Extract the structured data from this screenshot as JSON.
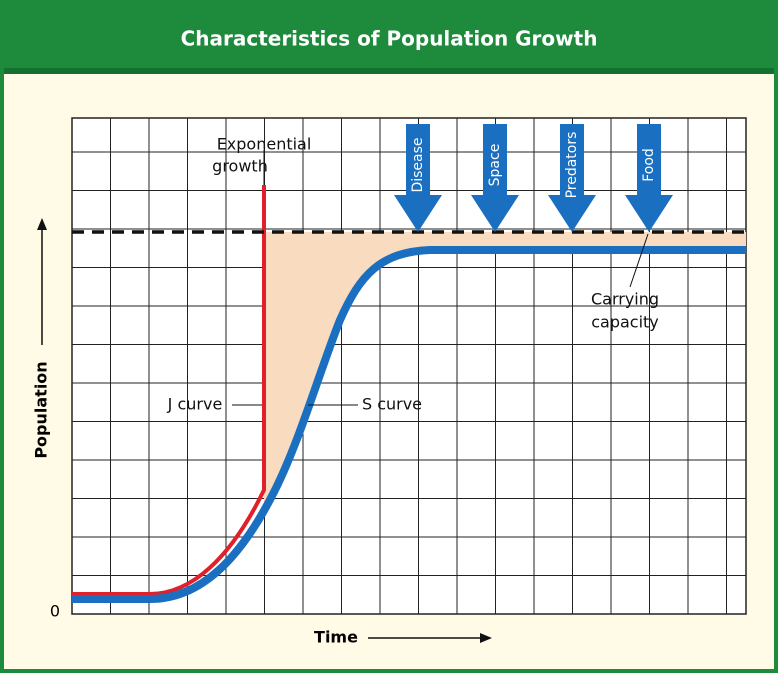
{
  "header": {
    "title": "Characteristics of Population Growth"
  },
  "labels": {
    "exponential_growth": [
      "Exponential",
      "growth"
    ],
    "j_curve": "J curve",
    "s_curve": "S curve",
    "carrying_capacity": [
      "Carrying",
      "capacity"
    ]
  },
  "limiting_factors": [
    "Disease",
    "Space",
    "Predators",
    "Food"
  ],
  "axes": {
    "y_label": "Population",
    "x_label": "Time",
    "origin": "0"
  }
}
